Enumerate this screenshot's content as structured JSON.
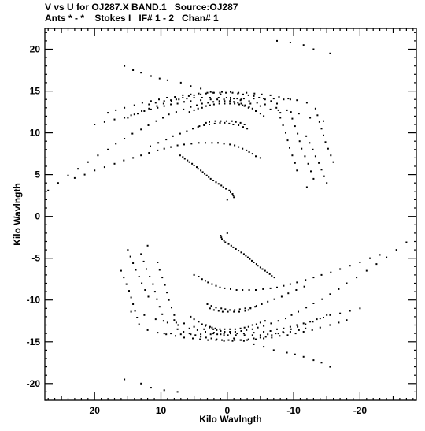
{
  "header": {
    "line1": "V vs U for OJ287.X BAND.1   Source:OJ287",
    "line2": "Ants * - *    Stokes I   IF# 1 - 2   Chan# 1"
  },
  "chart_data": {
    "type": "scatter",
    "title": "V vs U for OJ287.X BAND.1   Source:OJ287",
    "subtitle": "Ants * - *    Stokes I   IF# 1 - 2   Chan# 1",
    "xlabel": "Kilo Wavlngth",
    "ylabel": "Kilo Wavlngth",
    "xlim": [
      27.5,
      -28.5
    ],
    "ylim": [
      -22,
      22.5
    ],
    "x_ticks": [
      20,
      10,
      0,
      -10,
      -20
    ],
    "x_tick_labels": [
      "20",
      "10",
      "0",
      "-10",
      "-20"
    ],
    "y_ticks": [
      20,
      15,
      10,
      5,
      0,
      -5,
      -10,
      -15,
      -20
    ],
    "y_tick_labels": [
      "20",
      "15",
      "10",
      "5",
      "0",
      "-5",
      "-10",
      "-15",
      "-20"
    ],
    "grid": false,
    "points_u": [
      7.5,
      9.5,
      11.5,
      13.0,
      15.5,
      15.5,
      14.2,
      13.0,
      11.5,
      10.2,
      9.0,
      7.0,
      5.5,
      4.0,
      2.5,
      1.0,
      -0.5,
      -2.0,
      -3.5,
      -5.0,
      -6.5,
      -8.0,
      9.5,
      8.5,
      7.0,
      5.5,
      4.0,
      2.5,
      1.5,
      0.5,
      -0.5,
      -1.5,
      -2.5,
      -4.0,
      -5.5,
      -6.5,
      -7.5,
      -8.5,
      -9.5,
      -10.5,
      -11.5,
      -12.5,
      -13.5,
      -14.5,
      -15.5,
      -17.0,
      -18.5,
      -20.0,
      14.5,
      12.5,
      10.8,
      9.0,
      7.4,
      5.7,
      4.5,
      3.3,
      2.1,
      1.0,
      -0.1,
      -1.3,
      -2.6,
      -3.8,
      -5.0,
      -6.1,
      -7.3,
      -8.5,
      -9.5,
      -10.8,
      -11.8,
      12.0,
      10.5,
      9.2,
      7.8,
      6.5,
      5.2,
      4.1,
      2.9,
      1.7,
      0.5,
      -0.8,
      -2.0,
      -3.0,
      -4.3,
      -5.5,
      -6.7,
      -7.9,
      -9.1,
      -10.3,
      -11.5,
      -12.8,
      -14.0,
      -15.5,
      -16.8,
      -18.0,
      7.5,
      6.6,
      5.7,
      4.8,
      4.0,
      3.2,
      2.4,
      1.6,
      0.8,
      -0.2,
      -1.1,
      -2.1,
      -3.2,
      -4.0,
      -5.0,
      -5.8,
      -6.7,
      -7.7,
      -8.4,
      -9.6,
      -10.6,
      -11.8,
      -12.9,
      -14.0,
      -15.0,
      2.6,
      2.0,
      1.3,
      0.7,
      -0.1,
      -1.0,
      -1.8,
      -2.7,
      -3.2,
      -3.5,
      -4.2,
      3.2,
      2.6,
      2.3,
      1.8,
      1.1,
      0.4,
      -0.4,
      -1.2,
      -2.0,
      -2.6,
      -3.2,
      -3.8,
      -4.4,
      -5.0,
      -5.7,
      0.0,
      1.0,
      0.9,
      0.8,
      0.5,
      0.3,
      -0.2,
      -0.6,
      -0.9,
      -1.3,
      -1.7,
      -2.1,
      -2.5,
      -2.8,
      -3.1,
      -3.4,
      -3.7,
      -4.0,
      -4.4,
      -4.6,
      -5.0,
      -5.3,
      -5.7,
      -6.0,
      -6.4,
      -6.7,
      -7.1,
      5.0,
      4.3,
      3.8,
      3.3,
      2.9,
      2.3,
      1.7,
      1.1,
      0.4,
      -0.5,
      -1.4,
      -2.3,
      -3.3,
      -4.3,
      -5.4,
      -6.5,
      -7.5,
      -8.5,
      -9.5,
      -10.5,
      -11.8,
      -13.0,
      -14.2,
      -15.6,
      -17.0,
      -18.5,
      -20.0,
      -21.5,
      -23.0,
      3.0,
      2.4,
      1.7,
      0.9,
      0.3,
      -0.4,
      -1.1,
      -1.9,
      -2.7,
      -3.5,
      -4.4,
      -5.2,
      -6.1,
      -7.1,
      -8.2,
      -9.2,
      -10.4,
      -11.6,
      5.5,
      5.0,
      4.3,
      3.8,
      3.3,
      2.7,
      2.1,
      1.6,
      1.0,
      0.4,
      -0.4,
      -1.2,
      -2.1,
      -2.9,
      -3.8,
      -4.6,
      -5.5,
      -6.6,
      -7.7,
      -8.8,
      -9.7,
      -10.7,
      -11.9,
      -13.0,
      -14.3,
      -15.5,
      -16.8,
      -18.0,
      -19.5,
      -21.0,
      -22.5,
      -24.0,
      -25.5,
      -27.0,
      -3.0,
      -2.4,
      -1.7,
      -0.9,
      -0.3,
      0.4,
      1.1,
      1.9,
      2.7,
      3.5,
      4.4,
      5.2,
      6.1,
      7.1,
      8.2,
      9.2,
      10.4,
      11.6,
      -3.2,
      -2.6,
      -2.3,
      -1.8,
      -1.1,
      -0.4,
      0.4,
      1.2,
      2.0,
      2.6,
      3.2,
      3.8,
      4.4,
      5.0,
      5.7,
      -5.0,
      -4.3,
      -3.8,
      -3.3,
      -2.9,
      -2.3,
      -1.7,
      -1.1,
      -0.4,
      0.5,
      1.4,
      2.3,
      3.3,
      4.3,
      5.4,
      6.5,
      7.5,
      8.5,
      9.5,
      10.5,
      11.8,
      13.0,
      14.2,
      15.6,
      17.0,
      18.5,
      20.0,
      21.5,
      23.0,
      -2.6,
      -2.0,
      -1.3,
      -0.7,
      0.1,
      1.0,
      1.8,
      2.7,
      3.2,
      3.5,
      4.2,
      -7.5,
      -6.6,
      -5.7,
      -4.8,
      -4.0,
      -3.2,
      -2.4,
      -1.6,
      -0.8,
      0.2,
      1.1,
      2.1,
      3.2,
      4.0,
      5.0,
      5.8,
      6.7,
      7.7,
      8.4,
      9.6,
      10.6,
      11.8,
      12.9,
      14.0,
      15.0,
      -5.5,
      -5.0,
      -4.3,
      -3.8,
      -3.3,
      -2.7,
      -2.1,
      -1.6,
      -1.0,
      -0.4,
      0.4,
      1.2,
      2.1,
      2.9,
      3.8,
      4.6,
      5.5,
      6.6,
      7.7,
      8.8,
      9.7,
      10.7,
      11.9,
      13.0,
      14.3,
      15.5,
      16.8,
      18.0,
      19.5,
      21.0,
      22.5,
      24.0,
      25.5,
      27.0,
      0.0,
      -1.0,
      -0.9,
      -0.8,
      -0.5,
      -0.3,
      0.2,
      0.6,
      0.9,
      1.3,
      1.7,
      2.1,
      2.5,
      2.8,
      3.1,
      3.4,
      3.7,
      4.0,
      4.4,
      4.6,
      5.0,
      5.3,
      5.7,
      6.0,
      6.4,
      6.7,
      7.1,
      -12.0,
      -10.5,
      -9.2,
      -7.8,
      -6.5,
      -5.2,
      -4.1,
      -2.9,
      -1.7,
      -0.5,
      0.8,
      2.0,
      3.0,
      4.3,
      5.5,
      6.7,
      7.9,
      9.1,
      10.3,
      11.5,
      12.8,
      14.0,
      15.5,
      16.8,
      18.0,
      -14.5,
      -12.5,
      -10.8,
      -9.0,
      -7.4,
      -5.7,
      -4.5,
      -3.3,
      -2.1,
      -1.0,
      0.1,
      1.3,
      2.6,
      3.8,
      5.0,
      6.1,
      7.3,
      8.5,
      9.5,
      10.8,
      11.8,
      -9.5,
      -8.5,
      -7.0,
      -5.5,
      -4.0,
      -2.5,
      -1.5,
      -0.5,
      0.5,
      1.5,
      2.5,
      4.0,
      5.5,
      6.5,
      7.5,
      8.5,
      9.5,
      10.5,
      11.5,
      12.5,
      13.5,
      14.5,
      15.5,
      17.0,
      18.5,
      20.0,
      -7.5,
      -9.5,
      -11.5,
      -13.0,
      -15.5,
      -15.5,
      -14.2,
      -13.0,
      -11.5,
      -10.2,
      -9.0,
      -7.0,
      -5.5,
      -4.0,
      -2.5,
      -1.0,
      0.5,
      2.0,
      3.5,
      5.0,
      6.5,
      8.0,
      15.0,
      14.6,
      14.2,
      13.8,
      13.3,
      12.9,
      12.4,
      11.9,
      12.0,
      13.0,
      12.6,
      12.2,
      11.7,
      11.2,
      10.9,
      10.6,
      10.2,
      9.8,
      9.6,
      10.5,
      10.2,
      9.8,
      9.4,
      9.1,
      8.8,
      8.4,
      8.0,
      7.7,
      16.0,
      15.6,
      15.2,
      14.8,
      14.5,
      14.2,
      13.9,
      13.6,
      13.3,
      -15.0,
      -14.6,
      -14.2,
      -13.8,
      -13.3,
      -12.9,
      -12.4,
      -11.9,
      -12.0,
      -13.0,
      -12.6,
      -12.2,
      -11.7,
      -11.2,
      -10.9,
      -10.6,
      -10.2,
      -9.8,
      -9.6,
      -10.5,
      -10.2,
      -9.8,
      -9.4,
      -9.1,
      -8.8,
      -8.4,
      -8.0,
      -7.7,
      -16.0,
      -15.6,
      -15.2,
      -14.8,
      -14.5,
      -14.2,
      -13.9,
      -13.6,
      -13.3
    ],
    "points_v": [
      -21.0,
      -20.8,
      -20.5,
      -20.0,
      -19.5,
      18.0,
      17.5,
      17.2,
      16.8,
      16.5,
      16.3,
      16.0,
      15.6,
      15.3,
      14.9,
      14.6,
      14.2,
      13.9,
      13.5,
      13.2,
      12.8,
      12.4,
      -14.0,
      -14.0,
      -14.1,
      -14.1,
      -14.1,
      -14.1,
      -14.1,
      -14.0,
      -14.0,
      -14.0,
      -14.0,
      -13.9,
      -13.8,
      -13.7,
      -13.5,
      -13.4,
      -13.2,
      -13.0,
      -12.8,
      -12.6,
      -12.3,
      -12.1,
      -11.8,
      -11.6,
      -11.3,
      -11.0,
      -11.4,
      -11.8,
      -12.3,
      -12.7,
      -13.0,
      -13.4,
      -13.6,
      -13.8,
      -14.0,
      -14.1,
      -14.2,
      -14.2,
      -14.2,
      -14.2,
      -14.2,
      -14.1,
      -14.0,
      -13.9,
      -13.8,
      -13.6,
      -13.4,
      -13.6,
      -13.9,
      -14.1,
      -14.3,
      -14.5,
      -14.6,
      -14.7,
      -14.8,
      -14.8,
      -14.9,
      -14.9,
      -14.8,
      -14.8,
      -14.7,
      -14.6,
      -14.5,
      -14.3,
      -14.2,
      -14.0,
      -13.8,
      -13.6,
      -13.3,
      -13.0,
      -12.7,
      -12.4,
      -13.5,
      -13.8,
      -14.0,
      -14.2,
      -14.4,
      -14.5,
      -14.6,
      -14.7,
      -14.8,
      -14.8,
      -14.8,
      -14.8,
      -14.7,
      -14.6,
      -14.5,
      -14.4,
      -14.2,
      -14.0,
      -13.8,
      -13.5,
      -13.2,
      -12.9,
      -12.6,
      -12.2,
      -11.8,
      -11.0,
      -11.2,
      -11.3,
      -11.4,
      -11.4,
      -11.4,
      -11.4,
      -11.3,
      -11.2,
      -11.0,
      -10.8,
      -13.0,
      -13.2,
      -13.3,
      -13.4,
      -13.5,
      -13.5,
      -13.5,
      -13.5,
      -13.4,
      -13.3,
      -13.2,
      -13.0,
      -12.9,
      -12.7,
      -12.5,
      -2.0,
      -2.3,
      -2.5,
      -2.7,
      -2.9,
      -3.1,
      -3.3,
      -3.5,
      -3.7,
      -3.9,
      -4.1,
      -4.3,
      -4.5,
      -4.7,
      -4.9,
      -5.1,
      -5.3,
      -5.5,
      -5.7,
      -5.9,
      -6.1,
      -6.3,
      -6.5,
      -6.7,
      -6.9,
      -7.1,
      -7.3,
      -7.0,
      -7.2,
      -7.5,
      -7.7,
      -7.9,
      -8.1,
      -8.3,
      -8.5,
      -8.6,
      -8.7,
      -8.8,
      -8.8,
      -8.8,
      -8.8,
      -8.7,
      -8.6,
      -8.5,
      -8.3,
      -8.1,
      -7.9,
      -7.6,
      -7.3,
      -7.0,
      -6.7,
      -6.3,
      -5.9,
      -5.5,
      -5.0,
      -4.6,
      -10.5,
      -10.7,
      -10.9,
      -11.0,
      -11.1,
      -11.2,
      -11.2,
      -11.1,
      -11.0,
      -10.9,
      -10.7,
      -10.5,
      -10.2,
      -9.9,
      -9.6,
      -9.2,
      -8.8,
      -8.4,
      -12.0,
      -12.3,
      -12.6,
      -12.9,
      -13.1,
      -13.3,
      -13.5,
      -13.6,
      -13.7,
      -13.8,
      -13.8,
      -13.8,
      -13.7,
      -13.6,
      -13.5,
      -13.3,
      -13.1,
      -12.8,
      -12.5,
      -12.2,
      -11.8,
      -11.4,
      -10.9,
      -10.4,
      -9.9,
      -9.3,
      -8.7,
      -8.0,
      -7.3,
      -6.5,
      -5.7,
      -4.9,
      -4.0,
      -3.1,
      10.5,
      10.7,
      10.9,
      11.0,
      11.1,
      11.2,
      11.2,
      11.1,
      11.0,
      10.9,
      10.7,
      10.5,
      10.2,
      9.9,
      9.6,
      9.2,
      8.8,
      8.4,
      13.0,
      13.2,
      13.3,
      13.4,
      13.5,
      13.5,
      13.5,
      13.5,
      13.4,
      13.3,
      13.2,
      13.0,
      12.9,
      12.7,
      12.5,
      7.0,
      7.2,
      7.5,
      7.7,
      7.9,
      8.1,
      8.3,
      8.5,
      8.6,
      8.7,
      8.8,
      8.8,
      8.8,
      8.8,
      8.7,
      8.6,
      8.5,
      8.3,
      8.1,
      7.9,
      7.6,
      7.3,
      7.0,
      6.7,
      6.3,
      5.9,
      5.5,
      5.0,
      4.6,
      11.0,
      11.2,
      11.3,
      11.4,
      11.4,
      11.4,
      11.4,
      11.3,
      11.2,
      11.0,
      10.8,
      13.5,
      13.8,
      14.0,
      14.2,
      14.4,
      14.5,
      14.6,
      14.7,
      14.8,
      14.8,
      14.8,
      14.8,
      14.7,
      14.6,
      14.5,
      14.4,
      14.2,
      14.0,
      13.8,
      13.5,
      13.2,
      12.9,
      12.6,
      12.2,
      11.8,
      12.0,
      12.3,
      12.6,
      12.9,
      13.1,
      13.3,
      13.5,
      13.6,
      13.7,
      13.8,
      13.8,
      13.8,
      13.7,
      13.6,
      13.5,
      13.3,
      13.1,
      12.8,
      12.5,
      12.2,
      11.8,
      11.4,
      10.9,
      10.4,
      9.9,
      9.3,
      8.7,
      8.0,
      7.3,
      6.5,
      5.7,
      4.9,
      4.0,
      3.1,
      2.0,
      2.3,
      2.5,
      2.7,
      2.9,
      3.1,
      3.3,
      3.5,
      3.7,
      3.9,
      4.1,
      4.3,
      4.5,
      4.7,
      4.9,
      5.1,
      5.3,
      5.5,
      5.7,
      5.9,
      6.1,
      6.3,
      6.5,
      6.7,
      6.9,
      7.1,
      7.3,
      13.6,
      13.9,
      14.1,
      14.3,
      14.5,
      14.6,
      14.7,
      14.8,
      14.8,
      14.9,
      14.9,
      14.8,
      14.8,
      14.7,
      14.6,
      14.5,
      14.3,
      14.2,
      14.0,
      13.8,
      13.6,
      13.3,
      13.0,
      12.7,
      12.4,
      11.4,
      11.8,
      12.3,
      12.7,
      13.0,
      13.4,
      13.6,
      13.8,
      14.0,
      14.1,
      14.2,
      14.2,
      14.2,
      14.2,
      14.2,
      14.1,
      14.0,
      13.9,
      13.8,
      13.6,
      13.4,
      14.0,
      14.0,
      14.1,
      14.1,
      14.1,
      14.1,
      14.1,
      14.0,
      14.0,
      14.0,
      14.0,
      13.9,
      13.8,
      13.7,
      13.5,
      13.4,
      13.2,
      13.0,
      12.8,
      12.6,
      12.3,
      12.1,
      11.8,
      11.6,
      11.3,
      11.0,
      21.0,
      20.8,
      20.5,
      20.0,
      19.5,
      -18.0,
      -17.5,
      -17.2,
      -16.8,
      -16.5,
      -16.3,
      -16.0,
      -15.6,
      -15.3,
      -14.9,
      -14.6,
      -14.2,
      -13.9,
      -13.5,
      -13.2,
      -12.8,
      -12.4,
      -4.0,
      -4.8,
      -5.6,
      -6.4,
      -7.2,
      -8.0,
      -8.8,
      -9.6,
      -3.5,
      -4.5,
      -5.4,
      -6.3,
      -7.2,
      -8.1,
      -9.0,
      -9.9,
      -10.8,
      -11.7,
      -12.5,
      -5.5,
      -6.4,
      -7.3,
      -8.2,
      -9.1,
      -10.0,
      -10.9,
      -11.8,
      -12.7,
      -6.5,
      -7.3,
      -8.1,
      -8.9,
      -9.7,
      -10.5,
      -11.3,
      -12.1,
      -12.9,
      4.0,
      4.8,
      5.6,
      6.4,
      7.2,
      8.0,
      8.8,
      9.6,
      3.5,
      4.5,
      5.4,
      6.3,
      7.2,
      8.1,
      9.0,
      9.9,
      10.8,
      11.7,
      12.5,
      5.5,
      6.4,
      7.3,
      8.2,
      9.1,
      10.0,
      10.9,
      11.8,
      12.7,
      6.5,
      7.3,
      8.1,
      8.9,
      9.7,
      10.5,
      11.3,
      12.1,
      12.9
    ]
  }
}
